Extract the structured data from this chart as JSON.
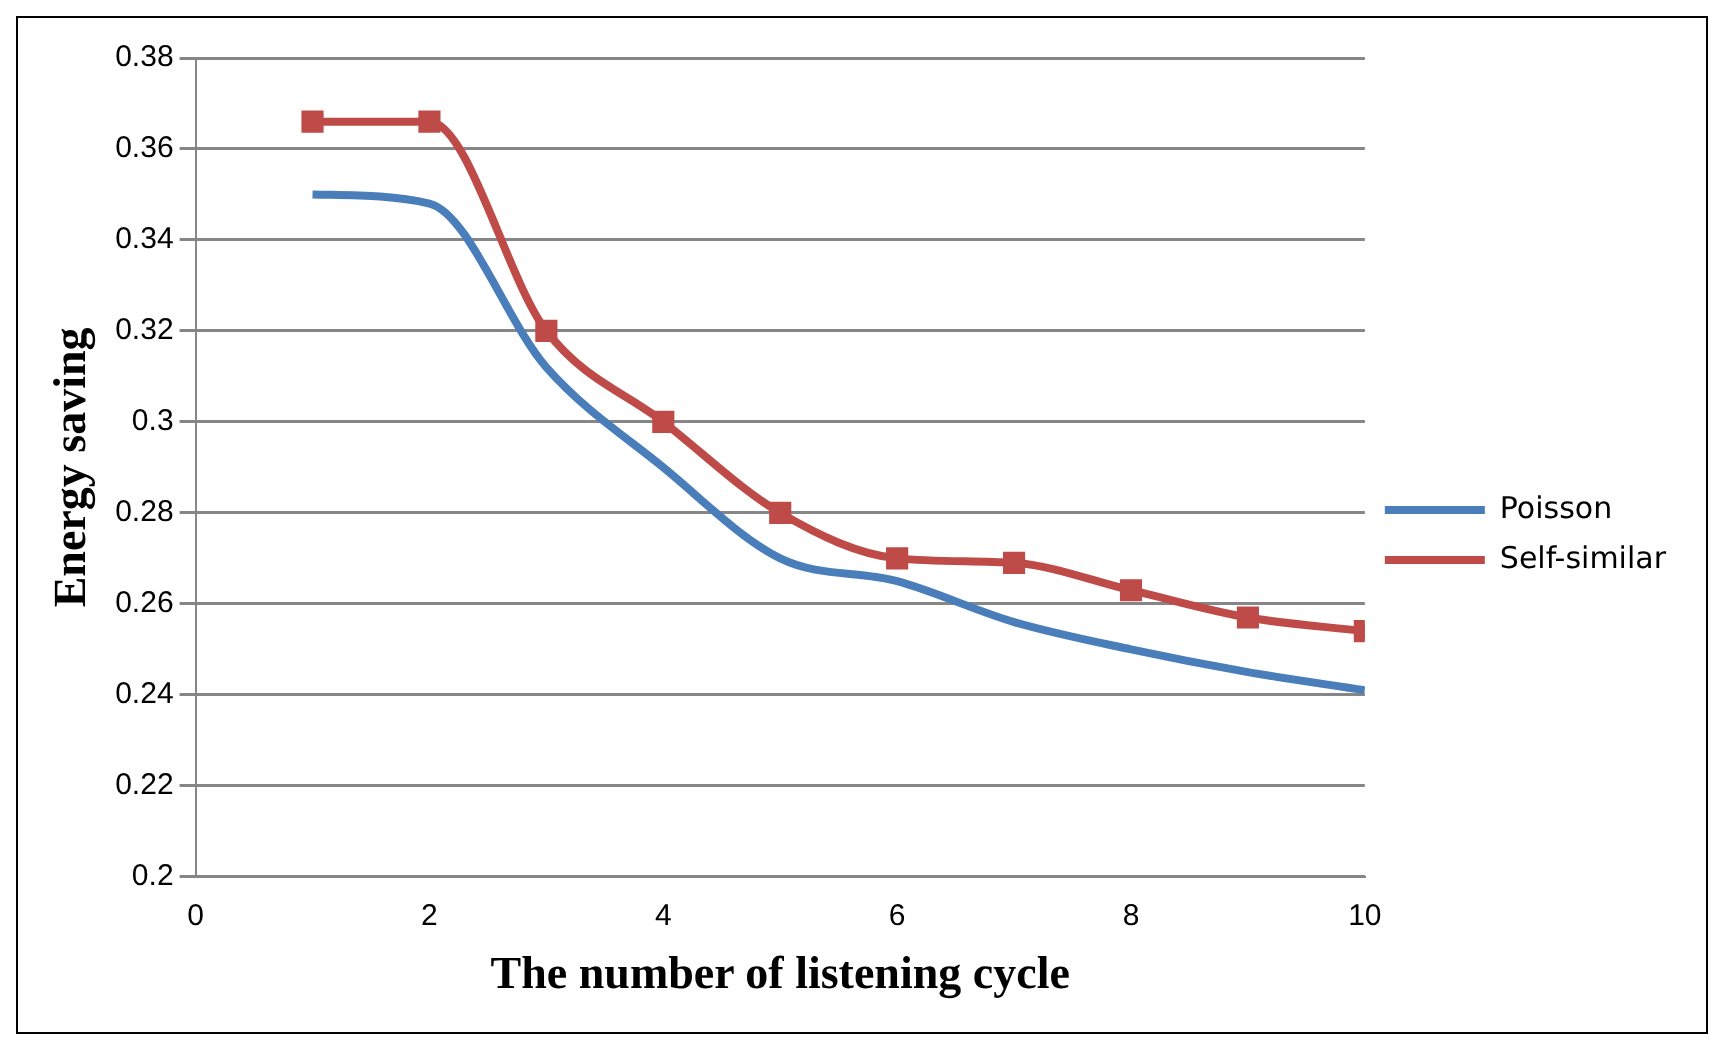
{
  "chart_data": {
    "type": "line",
    "xlabel": "The number of listening cycle",
    "ylabel": "Energy saving",
    "x": [
      1,
      2,
      3,
      4,
      5,
      6,
      7,
      8,
      9,
      10
    ],
    "series": [
      {
        "name": "Poisson",
        "color": "#4a7ebb",
        "marker": "none",
        "values": [
          0.35,
          0.348,
          0.312,
          0.29,
          0.27,
          0.265,
          0.256,
          0.25,
          0.245,
          0.241
        ]
      },
      {
        "name": "Self-similar",
        "color": "#be4b48",
        "marker": "square",
        "values": [
          0.366,
          0.366,
          0.32,
          0.3,
          0.28,
          0.27,
          0.269,
          0.263,
          0.257,
          0.254
        ]
      }
    ],
    "xlim": [
      0,
      10
    ],
    "xticks": [
      0,
      2,
      4,
      6,
      8,
      10
    ],
    "ylim": [
      0.2,
      0.38
    ],
    "yticks": [
      0.2,
      0.22,
      0.24,
      0.26,
      0.28,
      0.3,
      0.32,
      0.34,
      0.36,
      0.38
    ],
    "grid": "y",
    "legend": "right"
  }
}
